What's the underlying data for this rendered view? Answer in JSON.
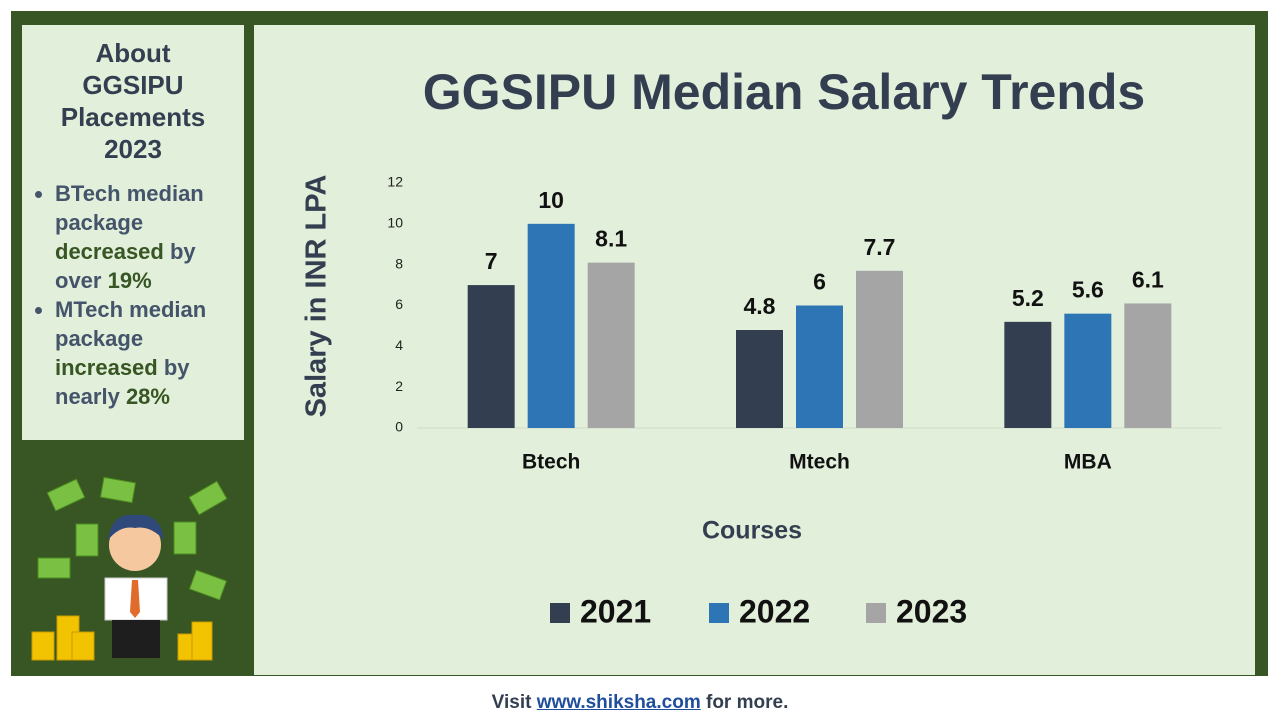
{
  "chart_data": {
    "type": "bar",
    "title": "GGSIPU Median Salary Trends",
    "categories": [
      "Btech",
      "Mtech",
      "MBA"
    ],
    "series": [
      {
        "name": "2021",
        "color": "#333f50",
        "values": [
          7,
          4.8,
          5.2
        ]
      },
      {
        "name": "2022",
        "color": "#2e75b6",
        "values": [
          10,
          6,
          5.6
        ]
      },
      {
        "name": "2023",
        "color": "#a5a5a5",
        "values": [
          8.1,
          7.7,
          6.1
        ]
      }
    ],
    "ylim": [
      0,
      12
    ],
    "yticks": [
      0,
      2,
      4,
      6,
      8,
      10,
      12
    ],
    "x_label": "Courses",
    "y_label": "Salary in INR LPA",
    "legend": "bottom"
  },
  "sidebar": {
    "title_lines": [
      "About",
      "GGSIPU",
      "Placements",
      "2023"
    ],
    "bullets": [
      [
        {
          "text": "BTech median package "
        },
        {
          "text": "decreased",
          "em": true
        },
        {
          "text": " by over "
        },
        {
          "text": "19%",
          "em": true
        }
      ],
      [
        {
          "text": "MTech median package "
        },
        {
          "text": "increased",
          "em": true
        },
        {
          "text": " by nearly "
        },
        {
          "text": "28%",
          "em": true
        }
      ]
    ]
  },
  "footer": [
    {
      "text": "Visit "
    },
    {
      "text": "www.shiksha.com",
      "link": true
    },
    {
      "text": " for more."
    }
  ]
}
